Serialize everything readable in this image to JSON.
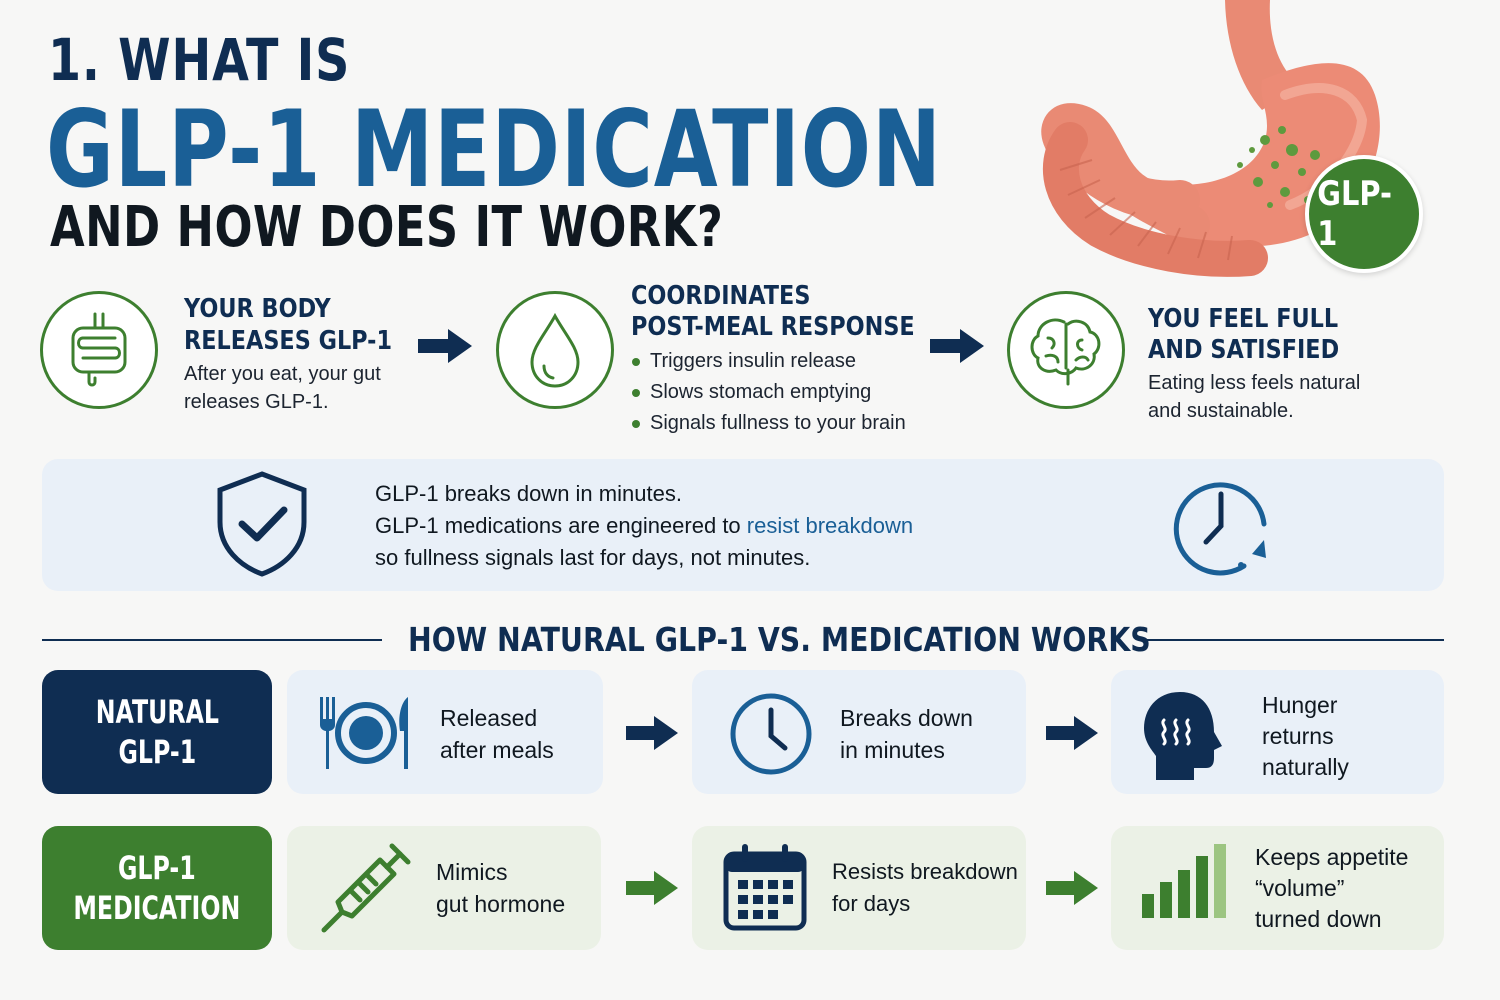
{
  "header": {
    "line1": "1. WHAT IS",
    "line2": "GLP-1 MEDICATION",
    "line3": "AND HOW DOES IT WORK?"
  },
  "illustration": {
    "icon": "stomach-intestine-illustration",
    "badge": "GLP-1"
  },
  "steps": [
    {
      "icon": "intestine-icon",
      "title_line1": "YOUR BODY",
      "title_line2": "RELEASES GLP-1",
      "body_line1": "After you eat, your gut",
      "body_line2": "releases GLP-1."
    },
    {
      "icon": "drop-icon",
      "title_line1": "COORDINATES",
      "title_line2": "POST-MEAL RESPONSE",
      "bullets": [
        "Triggers insulin release",
        "Slows stomach emptying",
        "Signals fullness to your brain"
      ]
    },
    {
      "icon": "brain-icon",
      "title_line1": "YOU FEEL FULL",
      "title_line2": "AND SATISFIED",
      "body_line1": "Eating less feels natural",
      "body_line2": "and sustainable."
    }
  ],
  "info": {
    "line1": "GLP-1 breaks down in minutes.",
    "line2_before": "GLP-1 medications are engineered to ",
    "line2_highlight": "resist breakdown",
    "line3": "so fullness signals last for days, not minutes.",
    "left_icon": "shield-check-icon",
    "right_icon": "clock-icon"
  },
  "comparison": {
    "title": "HOW NATURAL GLP-1 VS. MEDICATION WORKS",
    "natural": {
      "label_line1": "NATURAL",
      "label_line2": "GLP-1",
      "color": "#0f2d52",
      "cards": [
        {
          "icon": "plate-cutlery-icon",
          "line1": "Released",
          "line2": "after meals"
        },
        {
          "icon": "clock-icon",
          "line1": "Breaks down",
          "line2": "in minutes"
        },
        {
          "icon": "head-hunger-icon",
          "line1": "Hunger",
          "line2": "returns",
          "line3": "naturally"
        }
      ]
    },
    "medication": {
      "label_line1": "GLP-1",
      "label_line2": "MEDICATION",
      "color": "#3d7f2f",
      "cards": [
        {
          "icon": "syringe-icon",
          "line1": "Mimics",
          "line2": "gut hormone"
        },
        {
          "icon": "calendar-icon",
          "line1": "Resists breakdown",
          "line2": "for days"
        },
        {
          "icon": "volume-bars-icon",
          "line1": "Keeps appetite",
          "line2": "“volume”",
          "line3": "turned down"
        }
      ]
    }
  },
  "colors": {
    "navy": "#0f2d52",
    "blue": "#1a5f96",
    "green": "#3d7f2f",
    "light_blue": "#e9f0f8",
    "light_green": "#ebf1e6"
  }
}
